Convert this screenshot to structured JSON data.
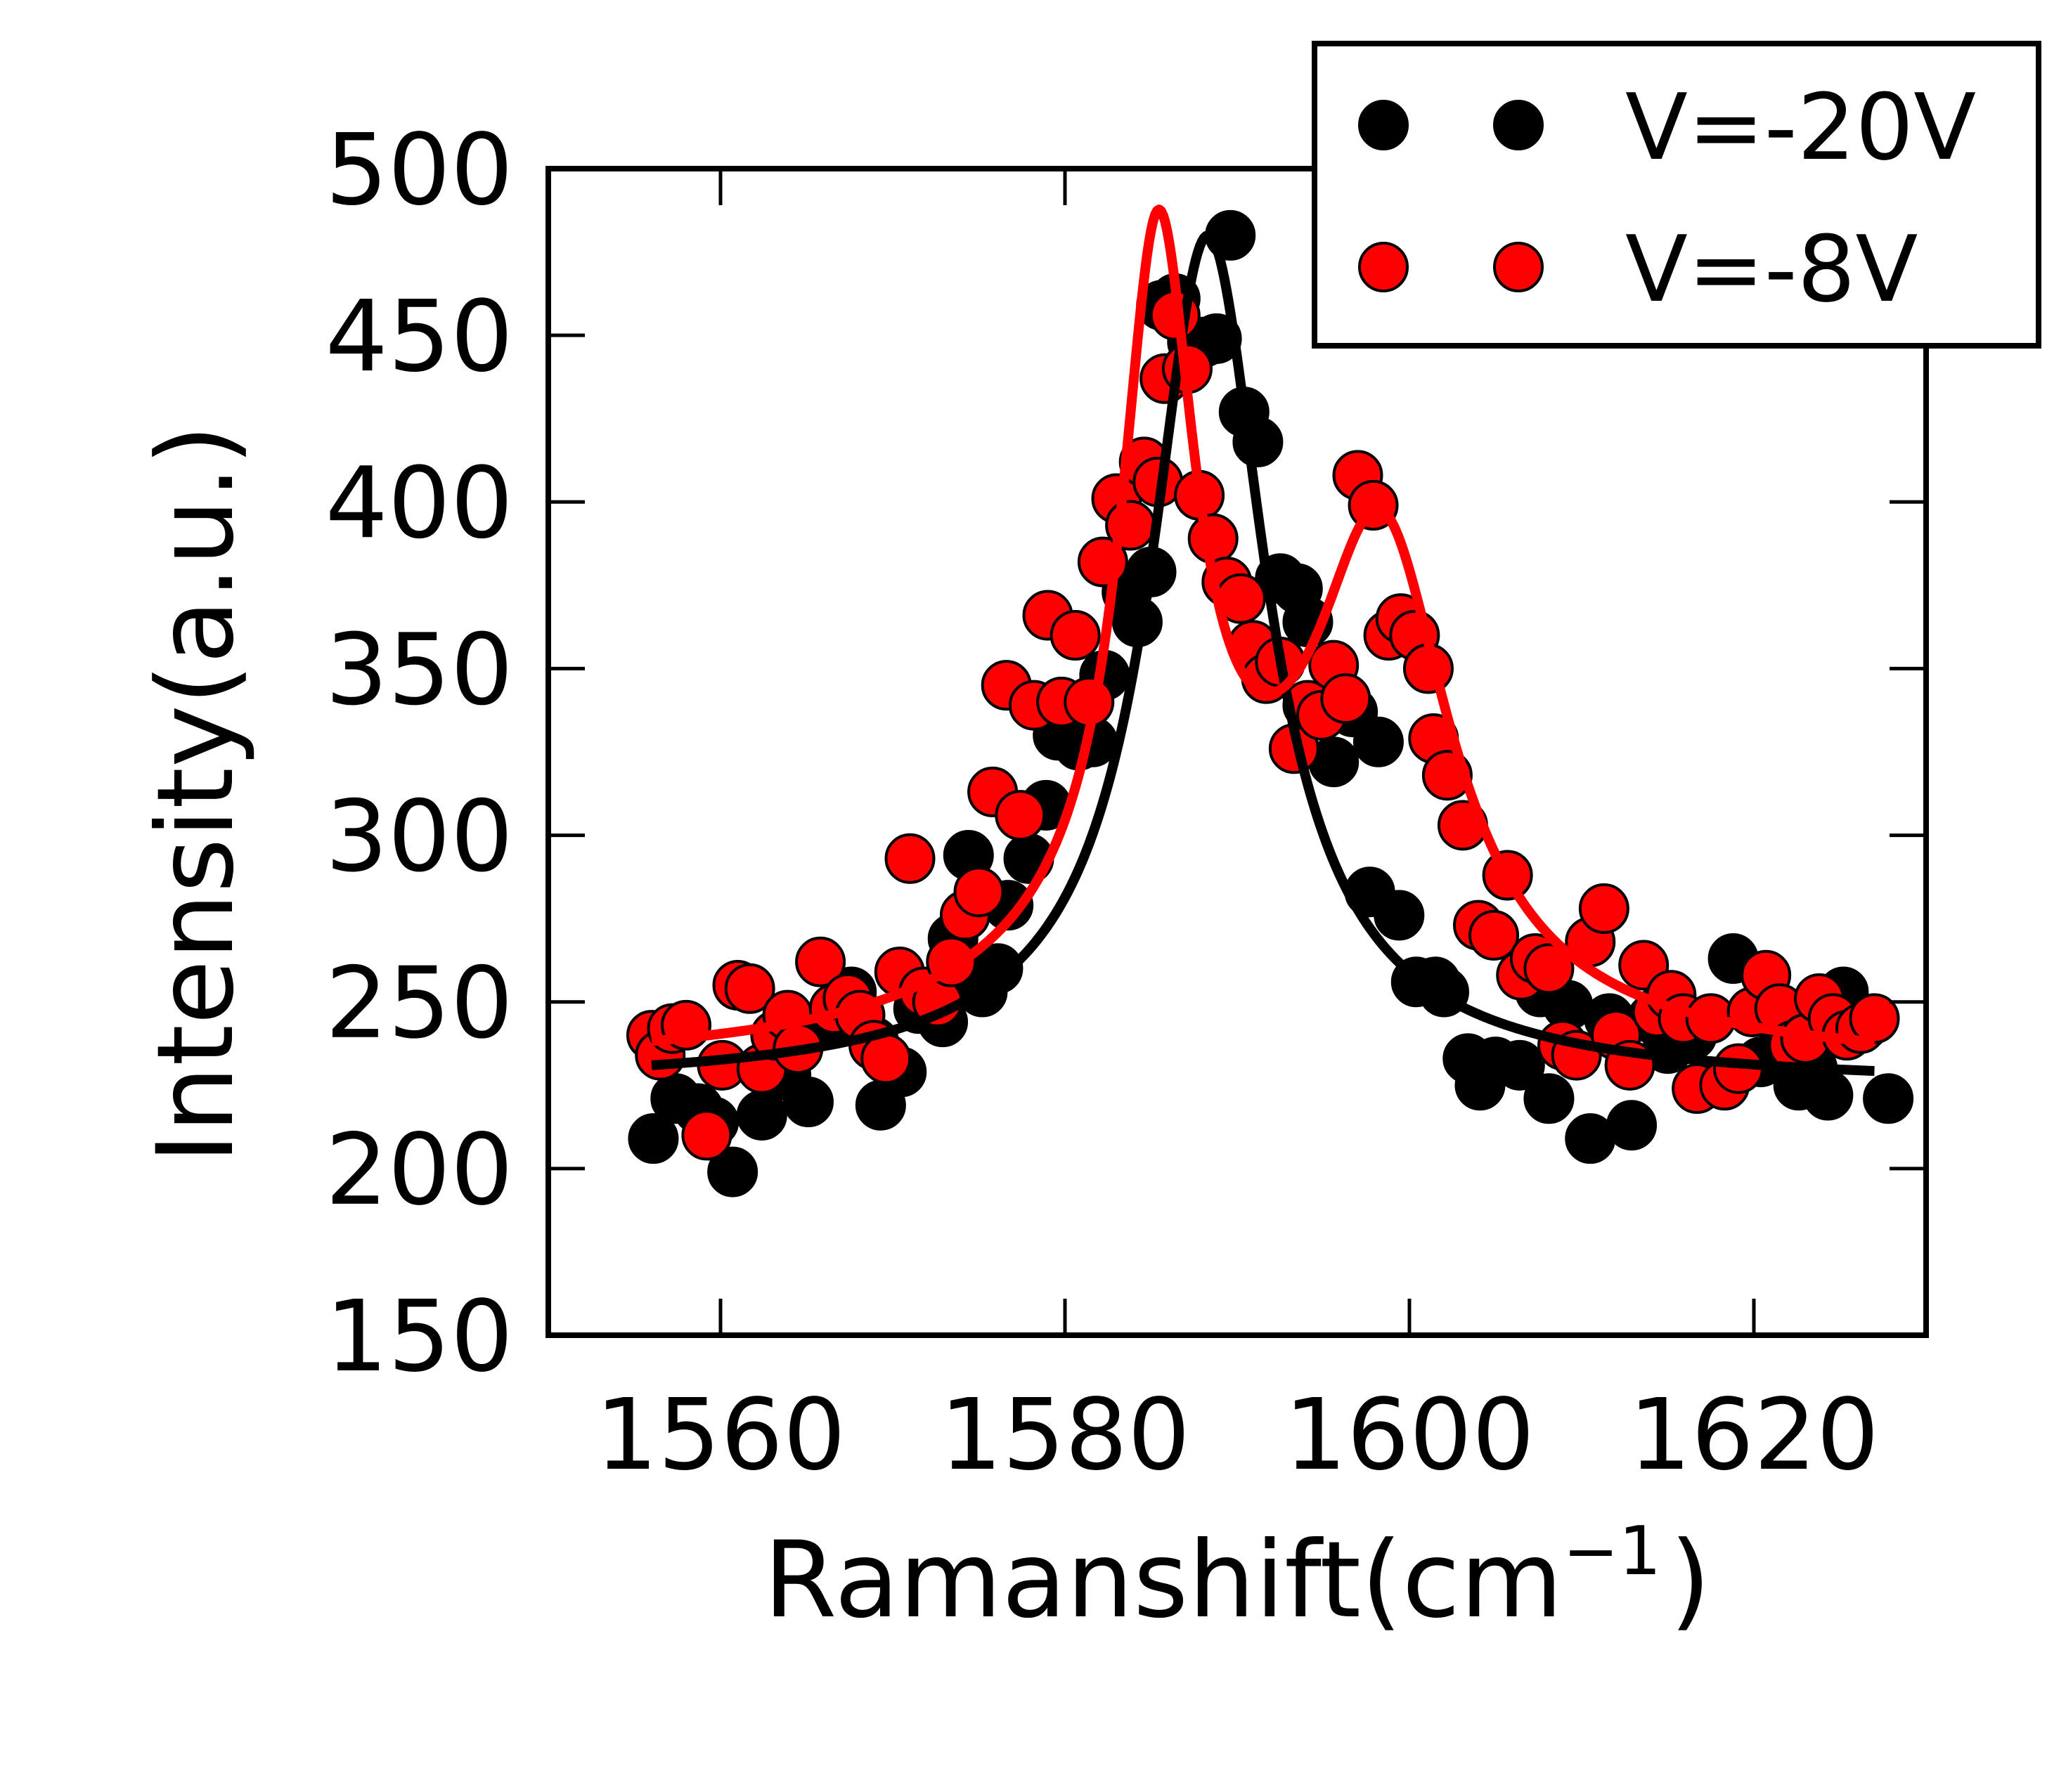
{
  "chart_data": {
    "type": "scatter",
    "xlabel_main": "Ramanshift(cm",
    "xlabel_sup": "−1",
    "xlabel_close": ")",
    "ylabel": "Intensity(a.u.)",
    "xlim": [
      1550,
      1630
    ],
    "ylim": [
      150,
      500
    ],
    "xticks": [
      1560,
      1580,
      1600,
      1620
    ],
    "xtick_labels": [
      "1560",
      "1580",
      "1600",
      "1620"
    ],
    "yticks": [
      150,
      200,
      250,
      300,
      350,
      400,
      450,
      500
    ],
    "ytick_labels": [
      "150",
      "200",
      "250",
      "300",
      "350",
      "400",
      "450",
      "500"
    ],
    "grid": false,
    "legend_position": "top-right",
    "series": [
      {
        "name": "V=-20V",
        "color": "#000000",
        "marker_edge": "#000000",
        "points": [
          [
            1556.1,
            209
          ],
          [
            1557.4,
            221
          ],
          [
            1558.7,
            218
          ],
          [
            1559.6,
            214
          ],
          [
            1560.7,
            199
          ],
          [
            1562.4,
            216
          ],
          [
            1563.8,
            228
          ],
          [
            1565.1,
            220
          ],
          [
            1566.4,
            244
          ],
          [
            1567.6,
            253
          ],
          [
            1568.9,
            238
          ],
          [
            1569.3,
            219
          ],
          [
            1570.5,
            229
          ],
          [
            1571.5,
            248
          ],
          [
            1572.9,
            244
          ],
          [
            1573.5,
            269
          ],
          [
            1574.4,
            294
          ],
          [
            1575.2,
            253
          ],
          [
            1576.1,
            260
          ],
          [
            1576.7,
            279
          ],
          [
            1577.9,
            293
          ],
          [
            1578.9,
            309
          ],
          [
            1579.6,
            330
          ],
          [
            1580.8,
            327
          ],
          [
            1581.6,
            328
          ],
          [
            1582.3,
            348
          ],
          [
            1583.6,
            373
          ],
          [
            1584.2,
            364
          ],
          [
            1585.0,
            379
          ],
          [
            1585.6,
            459
          ],
          [
            1586.4,
            461
          ],
          [
            1587.4,
            448
          ],
          [
            1588.1,
            448
          ],
          [
            1588.8,
            449
          ],
          [
            1589.6,
            480
          ],
          [
            1590.4,
            427
          ],
          [
            1591.2,
            418
          ],
          [
            1592.5,
            377
          ],
          [
            1593.5,
            374
          ],
          [
            1594.1,
            364
          ],
          [
            1595.6,
            322
          ],
          [
            1596.7,
            337
          ],
          [
            1597.7,
            283
          ],
          [
            1598.2,
            328
          ],
          [
            1599.4,
            276
          ],
          [
            1600.4,
            256
          ],
          [
            1601.5,
            256
          ],
          [
            1602.0,
            253
          ],
          [
            1603.4,
            233
          ],
          [
            1604.1,
            225
          ],
          [
            1605.0,
            232
          ],
          [
            1606.4,
            231
          ],
          [
            1607.6,
            253
          ],
          [
            1608.1,
            221
          ],
          [
            1609.2,
            249
          ],
          [
            1610.5,
            209
          ],
          [
            1611.6,
            245
          ],
          [
            1612.9,
            213
          ],
          [
            1614.1,
            245
          ],
          [
            1615.0,
            236
          ],
          [
            1616.4,
            240
          ],
          [
            1617.6,
            226
          ],
          [
            1618.8,
            263
          ],
          [
            1620.4,
            232
          ],
          [
            1621.5,
            244
          ],
          [
            1622.6,
            225
          ],
          [
            1623.4,
            230
          ],
          [
            1624.3,
            222
          ],
          [
            1625.2,
            253
          ],
          [
            1626.4,
            243
          ],
          [
            1627.8,
            221
          ]
        ],
        "fit": {
          "baseline": 225,
          "amplitude": 240,
          "center": 1588.3,
          "hwhm": 4.0,
          "shape": "lorentzian"
        }
      },
      {
        "name": "V=-8V",
        "color": "#ff0000",
        "marker_edge": "#000000",
        "points": [
          [
            1556.0,
            240
          ],
          [
            1556.5,
            234
          ],
          [
            1557.2,
            242
          ],
          [
            1558.0,
            243
          ],
          [
            1559.2,
            210
          ],
          [
            1560.1,
            231
          ],
          [
            1561.0,
            255
          ],
          [
            1561.7,
            254
          ],
          [
            1562.4,
            230
          ],
          [
            1563.2,
            240
          ],
          [
            1563.9,
            246
          ],
          [
            1564.5,
            236
          ],
          [
            1565.8,
            262
          ],
          [
            1566.6,
            248
          ],
          [
            1567.4,
            251
          ],
          [
            1568.1,
            246
          ],
          [
            1568.9,
            237
          ],
          [
            1569.6,
            233
          ],
          [
            1570.4,
            259
          ],
          [
            1571.0,
            293
          ],
          [
            1571.8,
            253
          ],
          [
            1572.6,
            250
          ],
          [
            1573.4,
            262
          ],
          [
            1574.2,
            276
          ],
          [
            1575.0,
            283
          ],
          [
            1575.8,
            313
          ],
          [
            1576.6,
            345
          ],
          [
            1577.4,
            306
          ],
          [
            1578.2,
            339
          ],
          [
            1579.0,
            366
          ],
          [
            1579.8,
            340
          ],
          [
            1580.6,
            360
          ],
          [
            1581.4,
            340
          ],
          [
            1582.2,
            382
          ],
          [
            1583.0,
            401
          ],
          [
            1583.8,
            393
          ],
          [
            1584.6,
            412
          ],
          [
            1585.4,
            406
          ],
          [
            1585.8,
            437
          ],
          [
            1586.4,
            456
          ],
          [
            1587.1,
            440
          ],
          [
            1587.8,
            402
          ],
          [
            1588.6,
            389
          ],
          [
            1589.4,
            376
          ],
          [
            1590.2,
            371
          ],
          [
            1590.9,
            357
          ],
          [
            1591.7,
            347
          ],
          [
            1592.5,
            352
          ],
          [
            1593.3,
            326
          ],
          [
            1594.1,
            339
          ],
          [
            1594.9,
            336
          ],
          [
            1595.6,
            351
          ],
          [
            1596.3,
            341
          ],
          [
            1597.0,
            408
          ],
          [
            1597.9,
            399
          ],
          [
            1598.8,
            360
          ],
          [
            1599.5,
            365
          ],
          [
            1600.3,
            360
          ],
          [
            1601.1,
            350
          ],
          [
            1601.4,
            329
          ],
          [
            1602.2,
            318
          ],
          [
            1603.1,
            303
          ],
          [
            1604.0,
            273
          ],
          [
            1604.9,
            270
          ],
          [
            1605.7,
            288
          ],
          [
            1606.5,
            258
          ],
          [
            1607.3,
            263
          ],
          [
            1608.1,
            260
          ],
          [
            1608.9,
            237
          ],
          [
            1609.7,
            234
          ],
          [
            1610.5,
            268
          ],
          [
            1611.3,
            278
          ],
          [
            1612.0,
            240
          ],
          [
            1612.8,
            231
          ],
          [
            1613.6,
            261
          ],
          [
            1614.4,
            247
          ],
          [
            1615.2,
            252
          ],
          [
            1615.9,
            245
          ],
          [
            1616.7,
            224
          ],
          [
            1617.5,
            245
          ],
          [
            1618.3,
            225
          ],
          [
            1619.1,
            230
          ],
          [
            1619.9,
            247
          ],
          [
            1620.7,
            258
          ],
          [
            1621.5,
            248
          ],
          [
            1622.3,
            237
          ],
          [
            1623.0,
            239
          ],
          [
            1623.8,
            251
          ],
          [
            1624.6,
            245
          ],
          [
            1625.4,
            240
          ],
          [
            1626.2,
            242
          ],
          [
            1627.0,
            245
          ]
        ],
        "fit": {
          "baseline": 230,
          "peaks": [
            [
              1585.4,
              203,
              2.6
            ],
            [
              1598.4,
              137,
              4.8
            ]
          ],
          "broad": [
            1585.4,
            0,
            12.0
          ],
          "shape": "lorentzian"
        }
      }
    ]
  }
}
